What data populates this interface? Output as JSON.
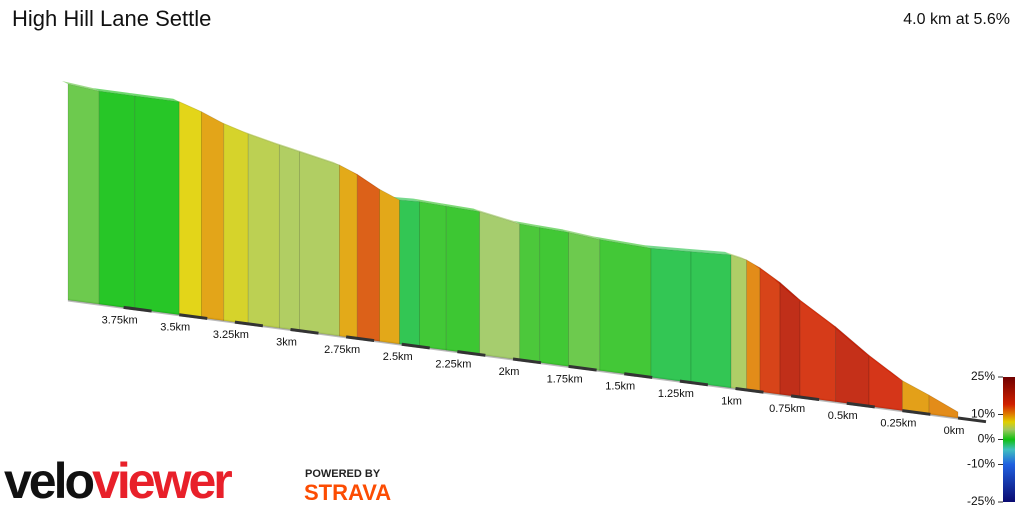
{
  "chart_data": {
    "type": "elevation-profile",
    "title": "High Hill Lane Settle",
    "subtitle": "4.0 km at 5.6%",
    "x": [
      0,
      0.13,
      0.25,
      0.4,
      0.55,
      0.71,
      0.8,
      0.89,
      0.95,
      1.02,
      1.2,
      1.38,
      1.61,
      1.75,
      1.88,
      1.97,
      2.15,
      2.3,
      2.42,
      2.51,
      2.6,
      2.7,
      2.78,
      2.96,
      3.05,
      3.19,
      3.3,
      3.4,
      3.5,
      3.7,
      3.86,
      4.0
    ],
    "values": [
      6,
      19,
      30,
      51,
      75,
      97,
      112,
      124,
      130,
      133,
      131,
      129,
      131,
      134,
      135,
      136,
      143,
      144,
      145,
      144,
      152,
      164,
      171,
      179,
      183,
      190,
      197,
      206,
      213,
      213,
      213,
      216
    ],
    "xlim": [
      0,
      4
    ],
    "xticks": [
      {
        "value": 0,
        "label": "0km"
      },
      {
        "value": 0.25,
        "label": "0.25km"
      },
      {
        "value": 0.5,
        "label": "0.5km"
      },
      {
        "value": 0.75,
        "label": "0.75km"
      },
      {
        "value": 1,
        "label": "1km"
      },
      {
        "value": 1.25,
        "label": "1.25km"
      },
      {
        "value": 1.5,
        "label": "1.5km"
      },
      {
        "value": 1.75,
        "label": "1.75km"
      },
      {
        "value": 2,
        "label": "2km"
      },
      {
        "value": 2.25,
        "label": "2.25km"
      },
      {
        "value": 2.5,
        "label": "2.5km"
      },
      {
        "value": 2.75,
        "label": "2.75km"
      },
      {
        "value": 3,
        "label": "3km"
      },
      {
        "value": 3.25,
        "label": "3.25km"
      },
      {
        "value": 3.5,
        "label": "3.5km"
      },
      {
        "value": 3.75,
        "label": "3.75km"
      }
    ],
    "clim": [
      -25,
      25
    ],
    "cticks": [
      {
        "value": 25,
        "label": "25%"
      },
      {
        "value": 10,
        "label": "10%"
      },
      {
        "value": 0,
        "label": "0%"
      },
      {
        "value": -10,
        "label": "-10%"
      },
      {
        "value": -25,
        "label": "-25%"
      }
    ],
    "color_stops": [
      {
        "value": -25,
        "color": "#0a0a70"
      },
      {
        "value": -10,
        "color": "#2060e0"
      },
      {
        "value": -4,
        "color": "#40c0c0"
      },
      {
        "value": 0,
        "color": "#10c010"
      },
      {
        "value": 4,
        "color": "#a0c860"
      },
      {
        "value": 7,
        "color": "#e0d000"
      },
      {
        "value": 10,
        "color": "#e08000"
      },
      {
        "value": 14,
        "color": "#d02000"
      },
      {
        "value": 25,
        "color": "#700000"
      }
    ],
    "credits": {
      "brand_1": "velo",
      "brand_2": "viewer",
      "powered_by": "POWERED BY",
      "provider": "STRAVA"
    }
  }
}
